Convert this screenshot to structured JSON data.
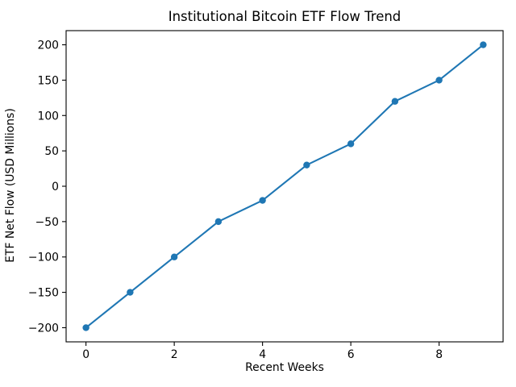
{
  "chart_data": {
    "type": "line",
    "title": "Institutional Bitcoin ETF Flow Trend",
    "xlabel": "Recent Weeks",
    "ylabel": "ETF Net Flow (USD Millions)",
    "x": [
      0,
      1,
      2,
      3,
      4,
      5,
      6,
      7,
      8,
      9
    ],
    "values": [
      -200,
      -150,
      -100,
      -50,
      -20,
      30,
      60,
      120,
      150,
      200
    ],
    "xticks": [
      0,
      2,
      4,
      6,
      8
    ],
    "yticks": [
      -200,
      -150,
      -100,
      -50,
      0,
      50,
      100,
      150,
      200
    ],
    "xlim": [
      -0.45,
      9.45
    ],
    "ylim": [
      -220,
      220
    ],
    "grid": false,
    "legend": "none",
    "marker": "o",
    "line_color": "#1f77b4",
    "marker_color": "#1f77b4",
    "axis_color": "#000000",
    "text_color": "#000000",
    "background_color": "#ffffff"
  }
}
